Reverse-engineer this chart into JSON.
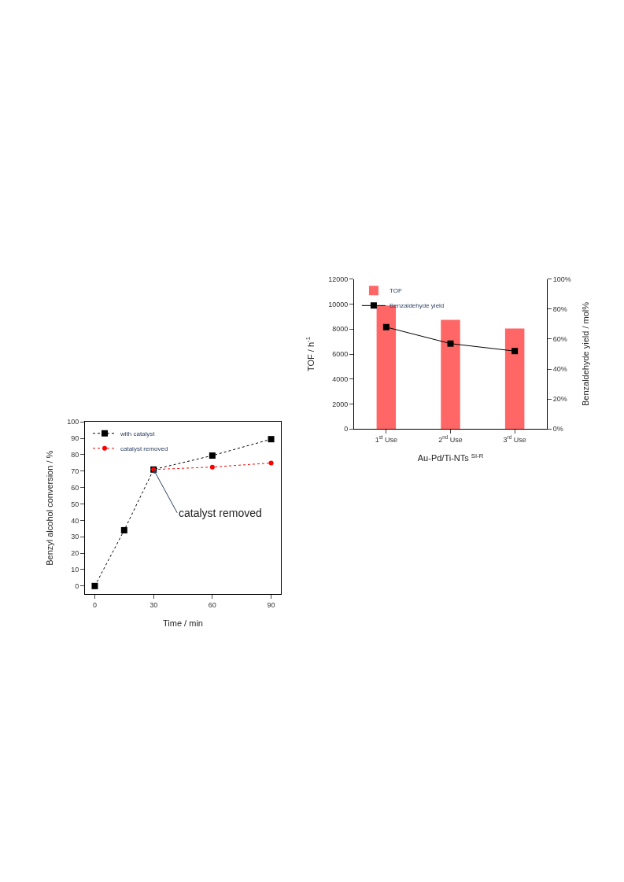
{
  "chart_data": [
    {
      "type": "bar",
      "categories": [
        "1$^{st}$ Use",
        "2$^{nd}$ Use",
        "3$^{rd}$ Use"
      ],
      "xlabel": "Au-Pd/Ti-NTs $^{SI-R}$",
      "ylabel": "TOF / h$^{-1}$",
      "y2label": "Benzaldehyde yield / mol%",
      "series": [
        {
          "name": "TOF",
          "color": "#ff6666",
          "values": [
            9900,
            8750,
            8050
          ]
        },
        {
          "name": "Benzaldehyde yield",
          "type": "line",
          "axis": "y2",
          "color": "#000000",
          "marker": "square",
          "line_style": "solid",
          "values": [
            68,
            57,
            52
          ]
        }
      ],
      "ylim": [
        0,
        12000
      ],
      "yticks": [
        0,
        2000,
        4000,
        6000,
        8000,
        10000,
        12000
      ],
      "y2lim": [
        0,
        100
      ],
      "y2ticks": [
        {
          "value": 0,
          "label": "0%"
        },
        {
          "value": 20,
          "label": "20%"
        },
        {
          "value": 40,
          "label": "40%"
        },
        {
          "value": 60,
          "label": "60%"
        },
        {
          "value": 80,
          "label": "80%"
        },
        {
          "value": 100,
          "label": "100%"
        }
      ],
      "legend": "top left"
    },
    {
      "type": "line",
      "xlabel": "Time / min",
      "ylabel": "Benzyl alcohol conversion / %",
      "series": [
        {
          "name": "with catalyst",
          "color": "#000000",
          "marker": "square",
          "line_style": "dotted",
          "x": [
            0,
            15,
            30,
            60,
            90
          ],
          "values": [
            0,
            34,
            71,
            79.5,
            89.5
          ]
        },
        {
          "name": "catalyst removed",
          "color": "#ff0000",
          "marker": "circle",
          "line_style": "dotted",
          "x": [
            30,
            60,
            90
          ],
          "values": [
            71,
            72.5,
            75
          ]
        }
      ],
      "xlim": [
        -5,
        95
      ],
      "xticks": [
        0,
        30,
        60,
        90
      ],
      "ylim": [
        -5,
        100
      ],
      "yticks": [
        0,
        10,
        20,
        30,
        40,
        50,
        60,
        70,
        80,
        90,
        100
      ],
      "annotations": [
        {
          "text": "catalyst removed",
          "x": 30,
          "y": 71
        }
      ],
      "legend": "top left"
    }
  ]
}
